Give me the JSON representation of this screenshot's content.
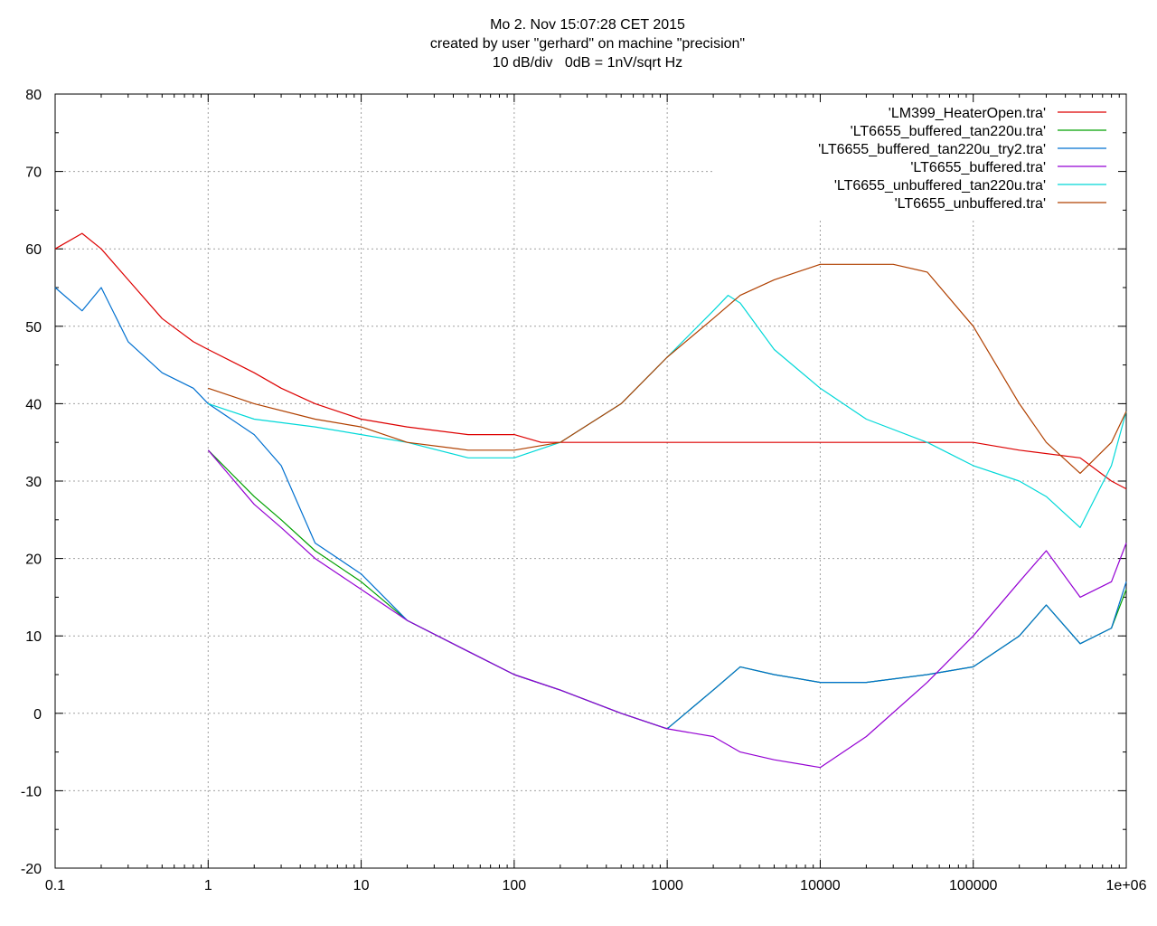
{
  "header": {
    "line1": "Mo 2. Nov 15:07:28 CET 2015",
    "line2": "created by user \"gerhard\" on machine \"precision\"",
    "line3": "10 dB/div   0dB = 1nV/sqrt Hz"
  },
  "chart_data": {
    "type": "line",
    "title": "",
    "xlabel": "",
    "ylabel": "",
    "x_scale": "log",
    "xlim": [
      0.1,
      1000000
    ],
    "ylim": [
      -20,
      80
    ],
    "grid": true,
    "legend_position": "top-right",
    "x_ticks": [
      "0.1",
      "1",
      "10",
      "100",
      "1000",
      "10000",
      "100000",
      "1e+06"
    ],
    "y_ticks": [
      "80",
      "70",
      "60",
      "50",
      "40",
      "30",
      "20",
      "10",
      "0",
      "-10",
      "-20"
    ],
    "series": [
      {
        "name": "'LM399_HeaterOpen.tra'",
        "color": "#dd0000",
        "x": [
          0.1,
          0.15,
          0.2,
          0.3,
          0.5,
          0.8,
          1,
          2,
          3,
          5,
          10,
          20,
          50,
          100,
          150,
          200,
          300,
          500,
          1000,
          2000,
          5000,
          10000,
          20000,
          50000,
          100000,
          200000,
          500000,
          800000,
          1000000
        ],
        "y": [
          60,
          62,
          60,
          56,
          51,
          48,
          47,
          44,
          42,
          40,
          38,
          37,
          36,
          36,
          35,
          35,
          35,
          35,
          35,
          35,
          35,
          35,
          35,
          35,
          35,
          34,
          33,
          30,
          29
        ]
      },
      {
        "name": "'LT6655_buffered_tan220u.tra'",
        "color": "#00a000",
        "x": [
          1,
          2,
          3,
          5,
          10,
          20,
          50,
          100,
          200,
          500,
          1000,
          2000,
          3000,
          5000,
          10000,
          20000,
          50000,
          100000,
          200000,
          300000,
          500000,
          800000,
          1000000
        ],
        "y": [
          34,
          28,
          25,
          21,
          17,
          12,
          8,
          5,
          3,
          0,
          -2,
          3,
          6,
          5,
          4,
          4,
          5,
          6,
          10,
          14,
          9,
          11,
          16
        ]
      },
      {
        "name": "'LT6655_buffered_tan220u_try2.tra'",
        "color": "#0070d0",
        "x": [
          0.1,
          0.15,
          0.2,
          0.3,
          0.5,
          0.8,
          1,
          2,
          3,
          5,
          10,
          20,
          50,
          100,
          200,
          500,
          1000,
          2000,
          3000,
          5000,
          10000,
          20000,
          50000,
          100000,
          200000,
          300000,
          500000,
          800000,
          1000000
        ],
        "y": [
          55,
          52,
          55,
          48,
          44,
          42,
          40,
          36,
          32,
          22,
          18,
          12,
          8,
          5,
          3,
          0,
          -2,
          3,
          6,
          5,
          4,
          4,
          5,
          6,
          10,
          14,
          9,
          11,
          17
        ]
      },
      {
        "name": "'LT6655_buffered.tra'",
        "color": "#9400d3",
        "x": [
          1,
          2,
          3,
          5,
          10,
          20,
          50,
          100,
          200,
          500,
          1000,
          2000,
          3000,
          5000,
          10000,
          20000,
          50000,
          100000,
          200000,
          300000,
          500000,
          800000,
          1000000
        ],
        "y": [
          34,
          27,
          24,
          20,
          16,
          12,
          8,
          5,
          3,
          0,
          -2,
          -3,
          -5,
          -6,
          -7,
          -3,
          4,
          10,
          17,
          21,
          15,
          17,
          22
        ]
      },
      {
        "name": "'LT6655_unbuffered_tan220u.tra'",
        "color": "#00d8d8",
        "x": [
          1,
          2,
          5,
          10,
          20,
          50,
          100,
          200,
          500,
          1000,
          2000,
          2500,
          3000,
          5000,
          10000,
          20000,
          50000,
          100000,
          200000,
          300000,
          500000,
          800000,
          1000000
        ],
        "y": [
          40,
          38,
          37,
          36,
          35,
          33,
          33,
          35,
          40,
          46,
          52,
          54,
          53,
          47,
          42,
          38,
          35,
          32,
          30,
          28,
          24,
          32,
          39
        ]
      },
      {
        "name": "'LT6655_unbuffered.tra'",
        "color": "#b04000",
        "x": [
          1,
          2,
          5,
          10,
          20,
          50,
          100,
          200,
          500,
          1000,
          2000,
          3000,
          5000,
          10000,
          20000,
          30000,
          50000,
          100000,
          200000,
          300000,
          500000,
          800000,
          1000000
        ],
        "y": [
          42,
          40,
          38,
          37,
          35,
          34,
          34,
          35,
          40,
          46,
          51,
          54,
          56,
          58,
          58,
          58,
          57,
          50,
          40,
          35,
          31,
          35,
          39
        ]
      }
    ]
  }
}
